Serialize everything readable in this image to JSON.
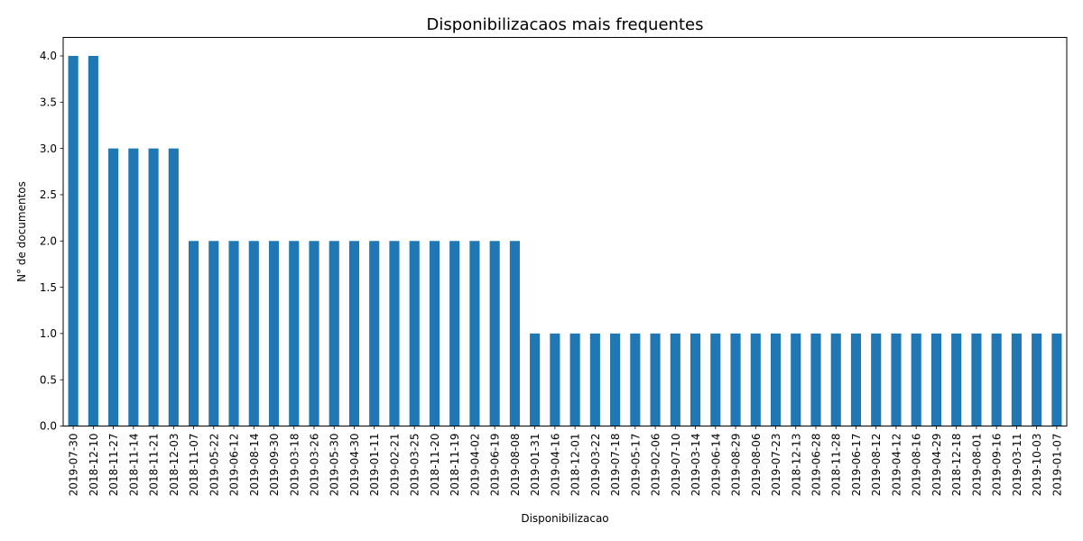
{
  "chart_data": {
    "type": "bar",
    "title": "Disponibilizacaos mais frequentes",
    "xlabel": "Disponibilizacao",
    "ylabel": "N° de documentos",
    "ylim": [
      0,
      4.2
    ],
    "yticks": [
      "0.0",
      "0.5",
      "1.0",
      "1.5",
      "2.0",
      "2.5",
      "3.0",
      "3.5",
      "4.0"
    ],
    "grid": false,
    "bar_color": "#1f77b4",
    "categories": [
      "2019-07-30",
      "2018-12-10",
      "2018-11-27",
      "2018-11-14",
      "2018-11-21",
      "2018-12-03",
      "2018-11-07",
      "2019-05-22",
      "2019-06-12",
      "2019-08-14",
      "2019-09-30",
      "2019-03-18",
      "2019-03-26",
      "2019-05-30",
      "2019-04-30",
      "2019-01-11",
      "2019-02-21",
      "2019-03-25",
      "2018-11-20",
      "2018-11-19",
      "2019-04-02",
      "2019-06-19",
      "2019-08-08",
      "2019-01-31",
      "2019-04-16",
      "2018-12-01",
      "2019-03-22",
      "2019-07-18",
      "2019-05-17",
      "2019-02-06",
      "2019-07-10",
      "2019-03-14",
      "2019-06-14",
      "2019-08-29",
      "2019-08-06",
      "2019-07-23",
      "2018-12-13",
      "2019-06-28",
      "2018-11-28",
      "2019-06-17",
      "2019-08-12",
      "2019-04-12",
      "2019-08-16",
      "2019-04-29",
      "2018-12-18",
      "2019-08-01",
      "2019-09-16",
      "2019-03-11",
      "2019-10-03",
      "2019-01-07"
    ],
    "values": [
      4,
      4,
      3,
      3,
      3,
      3,
      2,
      2,
      2,
      2,
      2,
      2,
      2,
      2,
      2,
      2,
      2,
      2,
      2,
      2,
      2,
      2,
      2,
      1,
      1,
      1,
      1,
      1,
      1,
      1,
      1,
      1,
      1,
      1,
      1,
      1,
      1,
      1,
      1,
      1,
      1,
      1,
      1,
      1,
      1,
      1,
      1,
      1,
      1,
      1
    ]
  }
}
